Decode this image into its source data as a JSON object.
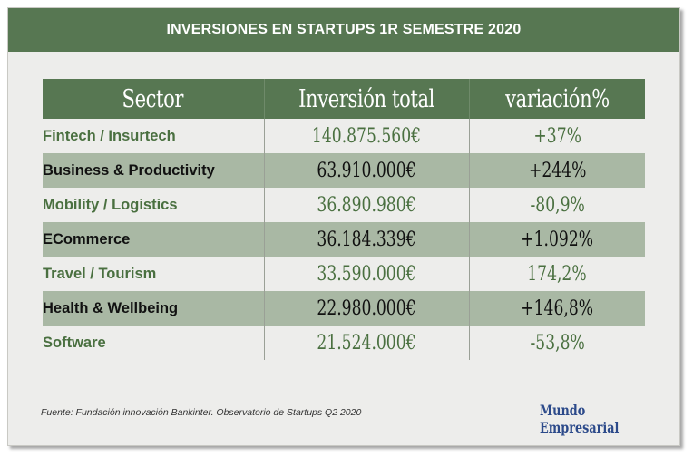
{
  "title": "INVERSIONES EN STARTUPS 1R SEMESTRE 2020",
  "chart_data": {
    "type": "table",
    "title": "INVERSIONES EN STARTUPS 1R SEMESTRE 2020",
    "columns": [
      "Sector",
      "Inversión total",
      "variación%"
    ],
    "rows": [
      {
        "sector": "Fintech / Insurtech",
        "inversion": "140.875.560€",
        "variacion": "+37%"
      },
      {
        "sector": "Business & Productivity",
        "inversion": "63.910.000€",
        "variacion": "+244%"
      },
      {
        "sector": "Mobility / Logistics",
        "inversion": "36.890.980€",
        "variacion": "-80,9%"
      },
      {
        "sector": "ECommerce",
        "inversion": "36.184.339€",
        "variacion": "+1.092%"
      },
      {
        "sector": "Travel / Tourism",
        "inversion": "33.590.000€",
        "variacion": "174,2%"
      },
      {
        "sector": "Health & Wellbeing",
        "inversion": "22.980.000€",
        "variacion": "+146,8%"
      },
      {
        "sector": "Software",
        "inversion": "21.524.000€",
        "variacion": "-53,8%"
      }
    ]
  },
  "source": "Fuente: Fundación innovación Bankinter. Observatorio de Startups Q2 2020",
  "brand": "Mundo Empresarial",
  "colors": {
    "header_green": "#577752",
    "stripe_green": "#a9b8a4",
    "text_green": "#4a7040",
    "background": "#ededeb",
    "brand_blue": "#2c4a8a"
  }
}
